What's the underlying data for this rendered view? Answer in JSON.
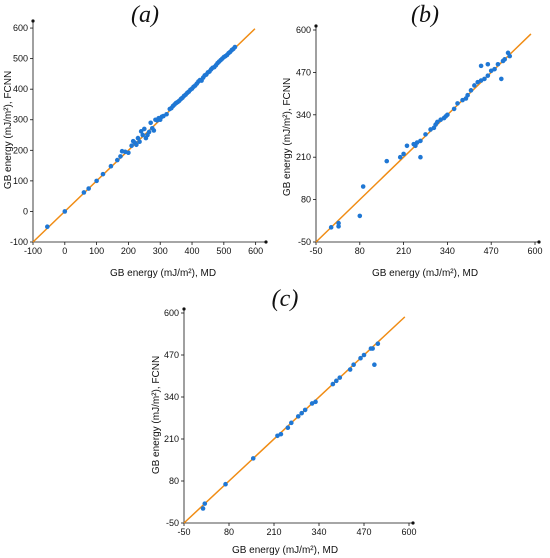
{
  "colors": {
    "points": "#1f77d4",
    "diagonal": "#f08c14",
    "axis": "#111111"
  },
  "chart_data": [
    {
      "type": "scatter",
      "panel_label": "(a)",
      "xlabel": "GB energy (mJ/m²), MD",
      "ylabel": "GB energy (mJ/m²), FCNN",
      "xlim": [
        -100,
        620
      ],
      "ylim": [
        -100,
        610
      ],
      "xticks": [
        -100,
        0,
        100,
        200,
        300,
        400,
        500,
        600
      ],
      "yticks": [
        -100,
        0,
        100,
        200,
        300,
        400,
        500,
        600
      ],
      "reference_line": "y = x",
      "grid": false,
      "series": [
        {
          "points": [
            [
              -55,
              -50
            ],
            [
              0,
              0
            ],
            [
              60,
              62
            ],
            [
              75,
              75
            ],
            [
              100,
              100
            ],
            [
              120,
              122
            ],
            [
              145,
              148
            ],
            [
              165,
              168
            ],
            [
              175,
              180
            ],
            [
              180,
              197
            ],
            [
              190,
              195
            ],
            [
              200,
              192
            ],
            [
              210,
              215
            ],
            [
              215,
              230
            ],
            [
              220,
              225
            ],
            [
              225,
              218
            ],
            [
              230,
              240
            ],
            [
              235,
              228
            ],
            [
              240,
              262
            ],
            [
              245,
              250
            ],
            [
              250,
              270
            ],
            [
              255,
              240
            ],
            [
              260,
              250
            ],
            [
              265,
              260
            ],
            [
              270,
              290
            ],
            [
              275,
              272
            ],
            [
              280,
              265
            ],
            [
              285,
              300
            ],
            [
              290,
              298
            ],
            [
              295,
              305
            ],
            [
              300,
              300
            ],
            [
              305,
              310
            ],
            [
              310,
              312
            ],
            [
              320,
              318
            ],
            [
              330,
              335
            ],
            [
              335,
              338
            ],
            [
              340,
              345
            ],
            [
              345,
              350
            ],
            [
              350,
              355
            ],
            [
              355,
              358
            ],
            [
              360,
              362
            ],
            [
              365,
              368
            ],
            [
              370,
              372
            ],
            [
              375,
              378
            ],
            [
              380,
              382
            ],
            [
              385,
              388
            ],
            [
              390,
              392
            ],
            [
              395,
              398
            ],
            [
              400,
              402
            ],
            [
              405,
              408
            ],
            [
              410,
              412
            ],
            [
              415,
              418
            ],
            [
              420,
              425
            ],
            [
              425,
              430
            ],
            [
              430,
              428
            ],
            [
              435,
              438
            ],
            [
              440,
              445
            ],
            [
              445,
              448
            ],
            [
              450,
              455
            ],
            [
              455,
              458
            ],
            [
              460,
              465
            ],
            [
              465,
              470
            ],
            [
              470,
              472
            ],
            [
              475,
              478
            ],
            [
              480,
              485
            ],
            [
              485,
              490
            ],
            [
              490,
              495
            ],
            [
              495,
              500
            ],
            [
              500,
              505
            ],
            [
              505,
              508
            ],
            [
              510,
              512
            ],
            [
              515,
              518
            ],
            [
              520,
              522
            ],
            [
              525,
              528
            ],
            [
              530,
              532
            ],
            [
              535,
              538
            ]
          ]
        }
      ]
    },
    {
      "type": "scatter",
      "panel_label": "(b)",
      "xlabel": "GB energy (mJ/m²), MD",
      "ylabel": "GB energy (mJ/m²), FCNN",
      "xlim": [
        -50,
        600
      ],
      "ylim": [
        -50,
        600
      ],
      "xticks": [
        -50,
        80,
        210,
        340,
        470,
        600
      ],
      "yticks": [
        -50,
        80,
        210,
        340,
        470,
        600
      ],
      "reference_line": "y = x",
      "grid": false,
      "series": [
        {
          "points": [
            [
              -5,
              -5
            ],
            [
              17,
              -2
            ],
            [
              17,
              8
            ],
            [
              90,
              120
            ],
            [
              160,
              198
            ],
            [
              200,
              210
            ],
            [
              210,
              220
            ],
            [
              220,
              245
            ],
            [
              240,
              250
            ],
            [
              245,
              245
            ],
            [
              250,
              255
            ],
            [
              260,
              260
            ],
            [
              275,
              280
            ],
            [
              290,
              295
            ],
            [
              300,
              300
            ],
            [
              305,
              310
            ],
            [
              310,
              318
            ],
            [
              320,
              325
            ],
            [
              330,
              330
            ],
            [
              335,
              335
            ],
            [
              340,
              340
            ],
            [
              360,
              358
            ],
            [
              370,
              375
            ],
            [
              385,
              385
            ],
            [
              395,
              390
            ],
            [
              400,
              400
            ],
            [
              410,
              415
            ],
            [
              420,
              430
            ],
            [
              430,
              440
            ],
            [
              440,
              445
            ],
            [
              450,
              450
            ],
            [
              460,
              460
            ],
            [
              470,
              475
            ],
            [
              480,
              480
            ],
            [
              490,
              495
            ],
            [
              505,
              505
            ],
            [
              510,
              510
            ],
            [
              520,
              530
            ],
            [
              525,
              520
            ],
            [
              440,
              490
            ],
            [
              460,
              495
            ],
            [
              500,
              450
            ],
            [
              80,
              30
            ],
            [
              260,
              210
            ]
          ]
        }
      ]
    },
    {
      "type": "scatter",
      "panel_label": "(c)",
      "xlabel": "GB energy (mJ/m²), MD",
      "ylabel": "GB energy (mJ/m²), FCNN",
      "xlim": [
        -50,
        600
      ],
      "ylim": [
        -50,
        600
      ],
      "xticks": [
        -50,
        80,
        210,
        340,
        470,
        600
      ],
      "yticks": [
        -50,
        80,
        210,
        340,
        470,
        600
      ],
      "reference_line": "y = x",
      "grid": false,
      "series": [
        {
          "points": [
            [
              5,
              -5
            ],
            [
              10,
              10
            ],
            [
              70,
              70
            ],
            [
              150,
              150
            ],
            [
              220,
              220
            ],
            [
              230,
              225
            ],
            [
              250,
              245
            ],
            [
              260,
              260
            ],
            [
              280,
              280
            ],
            [
              290,
              290
            ],
            [
              300,
              300
            ],
            [
              320,
              320
            ],
            [
              330,
              325
            ],
            [
              380,
              380
            ],
            [
              390,
              390
            ],
            [
              400,
              400
            ],
            [
              430,
              425
            ],
            [
              440,
              440
            ],
            [
              460,
              460
            ],
            [
              470,
              470
            ],
            [
              490,
              490
            ],
            [
              495,
              490
            ],
            [
              500,
              440
            ],
            [
              510,
              505
            ]
          ]
        }
      ]
    }
  ]
}
